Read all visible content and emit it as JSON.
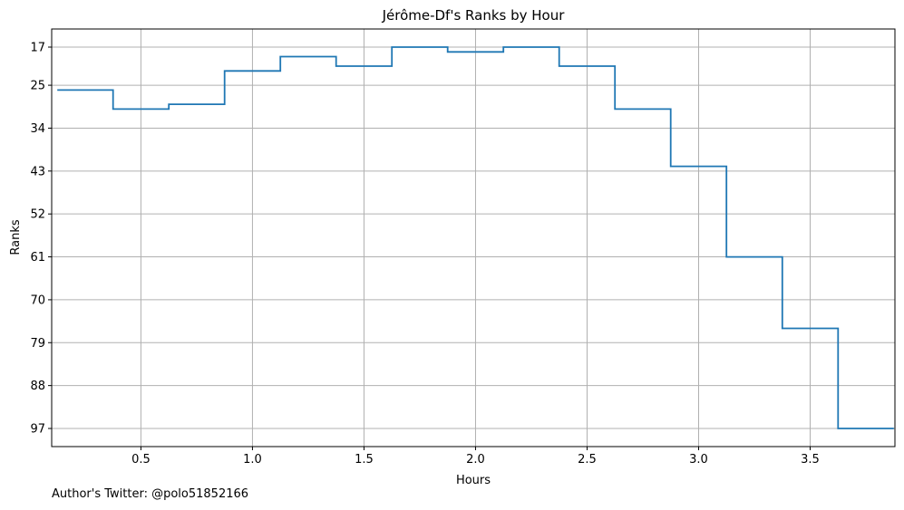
{
  "chart_data": {
    "type": "line",
    "title": "Jérôme-Df's Ranks by Hour",
    "xlabel": "Hours",
    "ylabel": "Ranks",
    "xlim": [
      0.1,
      3.88
    ],
    "ylim": [
      100.8,
      13.2
    ],
    "y_inverted": true,
    "x_ticks": [
      0.5,
      1.0,
      1.5,
      2.0,
      2.5,
      3.0,
      3.5
    ],
    "x_tick_labels": [
      "0.5",
      "1.0",
      "1.5",
      "2.0",
      "2.5",
      "3.0",
      "3.5"
    ],
    "y_ticks": [
      17,
      25,
      34,
      43,
      52,
      61,
      70,
      79,
      88,
      97
    ],
    "y_tick_labels": [
      "17",
      "25",
      "34",
      "43",
      "52",
      "61",
      "70",
      "79",
      "88",
      "97"
    ],
    "grid": true,
    "step": "mid",
    "series": [
      {
        "x": [
          0.25,
          0.5,
          0.75,
          1.0,
          1.25,
          1.5,
          1.75,
          2.0,
          2.25,
          2.5,
          2.75,
          3.0,
          3.25,
          3.5,
          3.75
        ],
        "values": [
          26,
          30,
          29,
          22,
          19,
          21,
          17,
          18,
          17,
          21,
          30,
          42,
          61,
          76,
          97
        ],
        "color": "#1f77b4"
      }
    ]
  },
  "footer": {
    "author": "Author's Twitter: @polo51852166"
  }
}
